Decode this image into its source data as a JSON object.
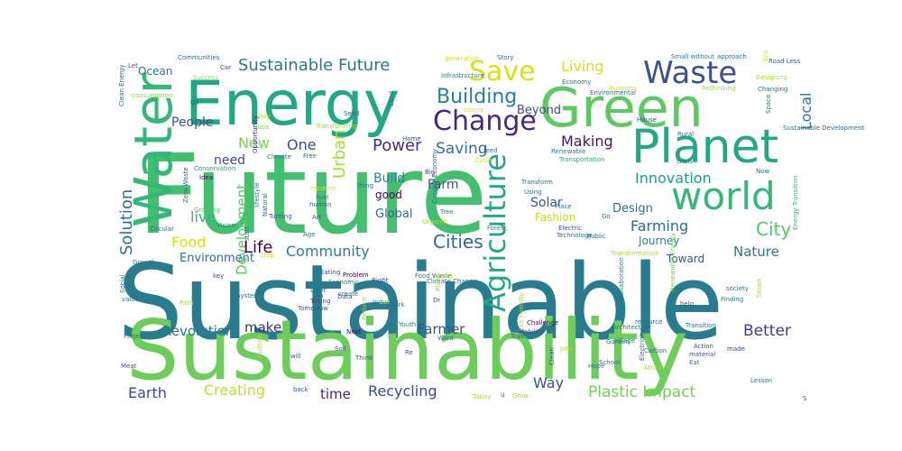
{
  "word_cloud": {
    "words": [
      {
        "text": "Sustainable",
        "color": "#297b8e",
        "rotate": 0
      },
      {
        "text": "Future",
        "color": "#44bf70",
        "rotate": 0
      },
      {
        "text": "Sustainability",
        "color": "#6ccd5a",
        "rotate": 0
      },
      {
        "text": "Energy",
        "color": "#22a884",
        "rotate": 0
      },
      {
        "text": "Green",
        "color": "#5ec962",
        "rotate": 0
      },
      {
        "text": "Planet",
        "color": "#22a884",
        "rotate": 0
      },
      {
        "text": "Waste",
        "color": "#3b528b",
        "rotate": 0
      },
      {
        "text": "world",
        "color": "#35b779",
        "rotate": 0
      },
      {
        "text": "Change",
        "color": "#482878",
        "rotate": 0
      },
      {
        "text": "Save",
        "color": "#d8e219",
        "rotate": 0
      },
      {
        "text": "Water",
        "color": "#35b779",
        "rotate": 270
      },
      {
        "text": "Agriculture",
        "color": "#22a884",
        "rotate": 270
      },
      {
        "text": "Building",
        "color": "#26828e",
        "rotate": 0
      },
      {
        "text": "Cities",
        "color": "#31688e",
        "rotate": 0
      },
      {
        "text": "Sustainable Future",
        "color": "#2a788e",
        "rotate": 0
      },
      {
        "text": "Living",
        "color": "#d8e219",
        "rotate": 0
      },
      {
        "text": "Local",
        "color": "#2a788e",
        "rotate": 270
      },
      {
        "text": "Ocean",
        "color": "#2c728e",
        "rotate": 0
      },
      {
        "text": "People",
        "color": "#3b528b",
        "rotate": 0
      },
      {
        "text": "New",
        "color": "#7ad151",
        "rotate": 0
      },
      {
        "text": "One",
        "color": "#3e4a89",
        "rotate": 0
      },
      {
        "text": "Beyond",
        "color": "#3e4a89",
        "rotate": 0
      },
      {
        "text": "Power",
        "color": "#472d7b",
        "rotate": 0
      },
      {
        "text": "Saving",
        "color": "#2c728e",
        "rotate": 0
      },
      {
        "text": "Making",
        "color": "#471063",
        "rotate": 0
      },
      {
        "text": "Urban",
        "color": "#a5db36",
        "rotate": 270
      },
      {
        "text": "need",
        "color": "#3e4a89",
        "rotate": 0
      },
      {
        "text": "Solution",
        "color": "#2c728e",
        "rotate": 270
      },
      {
        "text": "Innovation",
        "color": "#1f9e89",
        "rotate": 0
      },
      {
        "text": "Build",
        "color": "#26828e",
        "rotate": 0
      },
      {
        "text": "Farm",
        "color": "#3b528b",
        "rotate": 0
      },
      {
        "text": "good",
        "color": "#440154",
        "rotate": 0
      },
      {
        "text": "Solar",
        "color": "#38588c",
        "rotate": 0
      },
      {
        "text": "Design",
        "color": "#2c728e",
        "rotate": 0
      },
      {
        "text": "Fashion",
        "color": "#bddf26",
        "rotate": 0
      },
      {
        "text": "Global",
        "color": "#33638d",
        "rotate": 0
      },
      {
        "text": "live",
        "color": "#35b779",
        "rotate": 0
      },
      {
        "text": "Farming",
        "color": "#31688e",
        "rotate": 0
      },
      {
        "text": "City",
        "color": "#54c568",
        "rotate": 0
      },
      {
        "text": "Food",
        "color": "#d0e11c",
        "rotate": 0
      },
      {
        "text": "Development",
        "color": "#5ec962",
        "rotate": 270
      },
      {
        "text": "Life",
        "color": "#440154",
        "rotate": 0
      },
      {
        "text": "Community",
        "color": "#26828e",
        "rotate": 0
      },
      {
        "text": "Environment",
        "color": "#2c728e",
        "rotate": 0
      },
      {
        "text": "Journey",
        "color": "#26828e",
        "rotate": 0
      },
      {
        "text": "Nature",
        "color": "#2a788e",
        "rotate": 0
      },
      {
        "text": "Toward",
        "color": "#39568c",
        "rotate": 0
      },
      {
        "text": "Revolution",
        "color": "#2a788e",
        "rotate": 0
      },
      {
        "text": "make",
        "color": "#482878",
        "rotate": 0
      },
      {
        "text": "Farmer",
        "color": "#3b528b",
        "rotate": 0
      },
      {
        "text": "Better",
        "color": "#443a83",
        "rotate": 0
      },
      {
        "text": "Earth",
        "color": "#3e4a89",
        "rotate": 0
      },
      {
        "text": "Creating",
        "color": "#bddf26",
        "rotate": 0
      },
      {
        "text": "time",
        "color": "#482475",
        "rotate": 0
      },
      {
        "text": "Recycling",
        "color": "#3e4a89",
        "rotate": 0
      },
      {
        "text": "Way",
        "color": "#3b528b",
        "rotate": 0
      },
      {
        "text": "Plastic Impact",
        "color": "#73d056",
        "rotate": 0
      },
      {
        "text": "Clean Energy",
        "color": "#31688e",
        "rotate": 270
      },
      {
        "text": "Communities",
        "color": "#2c728e",
        "rotate": 0
      },
      {
        "text": "Car",
        "color": "#3b528b",
        "rotate": 0
      },
      {
        "text": "Let",
        "color": "#3b528b",
        "rotate": 0
      },
      {
        "text": "Success",
        "color": "#a5db36",
        "rotate": 0
      },
      {
        "text": "Oil",
        "color": "#3b528b",
        "rotate": 0
      },
      {
        "text": "consumption",
        "color": "#84d44b",
        "rotate": 0
      },
      {
        "text": "Day",
        "color": "#b5de2b",
        "rotate": 0
      },
      {
        "text": "India",
        "color": "#7ad151",
        "rotate": 0
      },
      {
        "text": "Transforming",
        "color": "#a5db36",
        "rotate": 0
      },
      {
        "text": "Opportunity",
        "color": "#472d7b",
        "rotate": 270
      },
      {
        "text": "Climate",
        "color": "#2a788e",
        "rotate": 0
      },
      {
        "text": "Free",
        "color": "#2c728e",
        "rotate": 0
      },
      {
        "text": "Conservation",
        "color": "#22a884",
        "rotate": 0
      },
      {
        "text": "Idea",
        "color": "#440154",
        "rotate": 0
      },
      {
        "text": "Vision",
        "color": "#26828e",
        "rotate": 0
      },
      {
        "text": "Natural",
        "color": "#31688e",
        "rotate": 270
      },
      {
        "text": "lifestyle",
        "color": "#2a788e",
        "rotate": 270
      },
      {
        "text": "Zero Waste",
        "color": "#31688e",
        "rotate": 270
      },
      {
        "text": "Growing",
        "color": "#54c568",
        "rotate": 0
      },
      {
        "text": "generation",
        "color": "#d8e219",
        "rotate": 0
      },
      {
        "text": "Story",
        "color": "#2c728e",
        "rotate": 0
      },
      {
        "text": "Infrastructure",
        "color": "#2a788e",
        "rotate": 0
      },
      {
        "text": "choice",
        "color": "#d8e219",
        "rotate": 0
      },
      {
        "text": "Economy",
        "color": "#2c728e",
        "rotate": 0
      },
      {
        "text": "Small without",
        "color": "#26828e",
        "rotate": 0
      },
      {
        "text": "approach",
        "color": "#2c728e",
        "rotate": 0
      },
      {
        "text": "Road Less",
        "color": "#31688e",
        "rotate": 0
      },
      {
        "text": "Eco",
        "color": "#d8e219",
        "rotate": 270
      },
      {
        "text": "Designing",
        "color": "#a5db36",
        "rotate": 0
      },
      {
        "text": "Changing",
        "color": "#2c728e",
        "rotate": 0
      },
      {
        "text": "Rethinking",
        "color": "#a5db36",
        "rotate": 0
      },
      {
        "text": "Business",
        "color": "#d8e219",
        "rotate": 0
      },
      {
        "text": "Environmental",
        "color": "#2c728e",
        "rotate": 0
      },
      {
        "text": "Seed",
        "color": "#31688e",
        "rotate": 0
      },
      {
        "text": "Land",
        "color": "#2c728e",
        "rotate": 270
      },
      {
        "text": "Home",
        "color": "#3b528b",
        "rotate": 0
      },
      {
        "text": "House",
        "color": "#3b528b",
        "rotate": 0
      },
      {
        "text": "Space",
        "color": "#2c728e",
        "rotate": 270
      },
      {
        "text": "Rural",
        "color": "#2c728e",
        "rotate": 0
      },
      {
        "text": "Sustainable Development",
        "color": "#2c728e",
        "rotate": 0
      },
      {
        "text": "Cycle",
        "color": "#d8e219",
        "rotate": 0
      },
      {
        "text": "feed",
        "color": "#2c728e",
        "rotate": 0
      },
      {
        "text": "Renewable",
        "color": "#2c728e",
        "rotate": 0
      },
      {
        "text": "Transportation",
        "color": "#22a884",
        "rotate": 0
      },
      {
        "text": "crisis",
        "color": "#2c728e",
        "rotate": 0
      },
      {
        "text": "Now",
        "color": "#31688e",
        "rotate": 0
      },
      {
        "text": "Big",
        "color": "#3b528b",
        "rotate": 0
      },
      {
        "text": "thing",
        "color": "#2c728e",
        "rotate": 0
      },
      {
        "text": "Transform",
        "color": "#2c728e",
        "rotate": 0
      },
      {
        "text": "Using",
        "color": "#2c728e",
        "rotate": 0
      },
      {
        "text": "Forest",
        "color": "#26828e",
        "rotate": 0
      },
      {
        "text": "Energy Transition",
        "color": "#35b779",
        "rotate": 270
      },
      {
        "text": "Circular Economy",
        "color": "#2c728e",
        "rotate": 270
      },
      {
        "text": "Tree",
        "color": "#26828e",
        "rotate": 0
      },
      {
        "text": "Place",
        "color": "#2c728e",
        "rotate": 0
      },
      {
        "text": "Go",
        "color": "#2c728e",
        "rotate": 0
      },
      {
        "text": "modern",
        "color": "#d8e219",
        "rotate": 0
      },
      {
        "text": "Fuel",
        "color": "#2c728e",
        "rotate": 0
      },
      {
        "text": "human",
        "color": "#31688e",
        "rotate": 0
      },
      {
        "text": "Turning",
        "color": "#3b528b",
        "rotate": 0
      },
      {
        "text": "Art",
        "color": "#3b528b",
        "rotate": 0
      },
      {
        "text": "Organic",
        "color": "#a5db36",
        "rotate": 0
      },
      {
        "text": "Age",
        "color": "#2c728e",
        "rotate": 0
      },
      {
        "text": "Electric",
        "color": "#3b528b",
        "rotate": 0
      },
      {
        "text": "Technology",
        "color": "#2c728e",
        "rotate": 0
      },
      {
        "text": "Public",
        "color": "#31688e",
        "rotate": 0
      },
      {
        "text": "Circular",
        "color": "#31688e",
        "rotate": 0
      },
      {
        "text": "start",
        "color": "#2c728e",
        "rotate": 270
      },
      {
        "text": "Step",
        "color": "#d8e219",
        "rotate": 0
      },
      {
        "text": "Transformation",
        "color": "#a5db36",
        "rotate": 0
      },
      {
        "text": "Growth",
        "color": "#2c728e",
        "rotate": 0
      },
      {
        "text": "Project",
        "color": "#2c728e",
        "rotate": 0
      },
      {
        "text": "Collaboration",
        "color": "#2c728e",
        "rotate": 270
      },
      {
        "text": "Renewable Energy",
        "color": "#7ad151",
        "rotate": 270
      },
      {
        "text": "society",
        "color": "#2c728e",
        "rotate": 0
      },
      {
        "text": "Finding",
        "color": "#2c728e",
        "rotate": 0
      },
      {
        "text": "help",
        "color": "#3b528b",
        "rotate": 0
      },
      {
        "text": "Eating",
        "color": "#3b528b",
        "rotate": 0
      },
      {
        "text": "Problem",
        "color": "#440154",
        "rotate": 0
      },
      {
        "text": "Food Waste",
        "color": "#2c728e",
        "rotate": 0
      },
      {
        "text": "Economic",
        "color": "#2c728e",
        "rotate": 0
      },
      {
        "text": "Road",
        "color": "#d8e219",
        "rotate": 0
      },
      {
        "text": "Right",
        "color": "#3b528b",
        "rotate": 0
      },
      {
        "text": "Industry",
        "color": "#2c728e",
        "rotate": 0
      },
      {
        "text": "Light",
        "color": "#2c728e",
        "rotate": 0
      },
      {
        "text": "sea",
        "color": "#2c728e",
        "rotate": 0
      },
      {
        "text": "key",
        "color": "#3b528b",
        "rotate": 0
      },
      {
        "text": "Path",
        "color": "#a5db36",
        "rotate": 0
      },
      {
        "text": "Social",
        "color": "#2c728e",
        "rotate": 270
      },
      {
        "text": "value",
        "color": "#2c728e",
        "rotate": 0
      },
      {
        "text": "System",
        "color": "#2c728e",
        "rotate": 0
      },
      {
        "text": "Tomorrow",
        "color": "#3b528b",
        "rotate": 0
      },
      {
        "text": "Taking",
        "color": "#3b528b",
        "rotate": 0
      },
      {
        "text": "Data",
        "color": "#3b528b",
        "rotate": 0
      },
      {
        "text": "create",
        "color": "#2c728e",
        "rotate": 0
      },
      {
        "text": "use",
        "color": "#d8e219",
        "rotate": 0
      },
      {
        "text": "Climate Change",
        "color": "#2c728e",
        "rotate": 0
      },
      {
        "text": "Plant",
        "color": "#a5db36",
        "rotate": 270
      },
      {
        "text": "Dr",
        "color": "#3b528b",
        "rotate": 0
      },
      {
        "text": "Work",
        "color": "#2c728e",
        "rotate": 0
      },
      {
        "text": "Want",
        "color": "#2c728e",
        "rotate": 0
      },
      {
        "text": "Eco Friendly",
        "color": "#a5db36",
        "rotate": 270
      },
      {
        "text": "Smart",
        "color": "#a5db36",
        "rotate": 270
      },
      {
        "text": "Reduce",
        "color": "#a5db36",
        "rotate": 270
      },
      {
        "text": "Youth",
        "color": "#2c728e",
        "rotate": 0
      },
      {
        "text": "Challenge",
        "color": "#440154",
        "rotate": 0
      },
      {
        "text": "Mobility",
        "color": "#3b528b",
        "rotate": 0
      },
      {
        "text": "Next",
        "color": "#440154",
        "rotate": 0
      },
      {
        "text": "resource",
        "color": "#2c728e",
        "rotate": 0
      },
      {
        "text": "Transition",
        "color": "#2c728e",
        "rotate": 0
      },
      {
        "text": "Architecture",
        "color": "#2c728e",
        "rotate": 0
      },
      {
        "text": "village",
        "color": "#2c728e",
        "rotate": 0
      },
      {
        "text": "Trash",
        "color": "#3b528b",
        "rotate": 0
      },
      {
        "text": "Garden",
        "color": "#2c728e",
        "rotate": 0
      },
      {
        "text": "Soil",
        "color": "#3b528b",
        "rotate": 0
      },
      {
        "text": "Culture",
        "color": "#a5db36",
        "rotate": 270
      },
      {
        "text": "will",
        "color": "#3b528b",
        "rotate": 0
      },
      {
        "text": "Think",
        "color": "#3b528b",
        "rotate": 0
      },
      {
        "text": "Re",
        "color": "#3b528b",
        "rotate": 0
      },
      {
        "text": "John",
        "color": "#a5db36",
        "rotate": 0
      },
      {
        "text": "Carbon",
        "color": "#2c728e",
        "rotate": 0
      },
      {
        "text": "Electricity",
        "color": "#2c728e",
        "rotate": 270
      },
      {
        "text": "Eat",
        "color": "#2c728e",
        "rotate": 0
      },
      {
        "text": "material",
        "color": "#3b528b",
        "rotate": 0
      },
      {
        "text": "Action",
        "color": "#3b528b",
        "rotate": 0
      },
      {
        "text": "made",
        "color": "#3b528b",
        "rotate": 0
      },
      {
        "text": "Meat",
        "color": "#3b528b",
        "rotate": 0
      },
      {
        "text": "Clean",
        "color": "#3b528b",
        "rotate": 270
      },
      {
        "text": "School",
        "color": "#2c728e",
        "rotate": 0
      },
      {
        "text": "Africa",
        "color": "#a5db36",
        "rotate": 0
      },
      {
        "text": "Hope",
        "color": "#2c728e",
        "rotate": 0
      },
      {
        "text": "back",
        "color": "#3b528b",
        "rotate": 0
      },
      {
        "text": "Today",
        "color": "#a5db36",
        "rotate": 0
      },
      {
        "text": "u",
        "color": "#3b528b",
        "rotate": 0
      },
      {
        "text": "Grow",
        "color": "#a5db36",
        "rotate": 0
      },
      {
        "text": "Lesson",
        "color": "#2c728e",
        "rotate": 0
      },
      {
        "text": "S",
        "color": "#3b528b",
        "rotate": 0
      },
      {
        "text": "Take",
        "color": "#3b528b",
        "rotate": 0
      },
      {
        "text": "Love",
        "color": "#a5db36",
        "rotate": 0
      },
      {
        "text": "Perspective",
        "color": "#a5db36",
        "rotate": 270
      }
    ]
  }
}
